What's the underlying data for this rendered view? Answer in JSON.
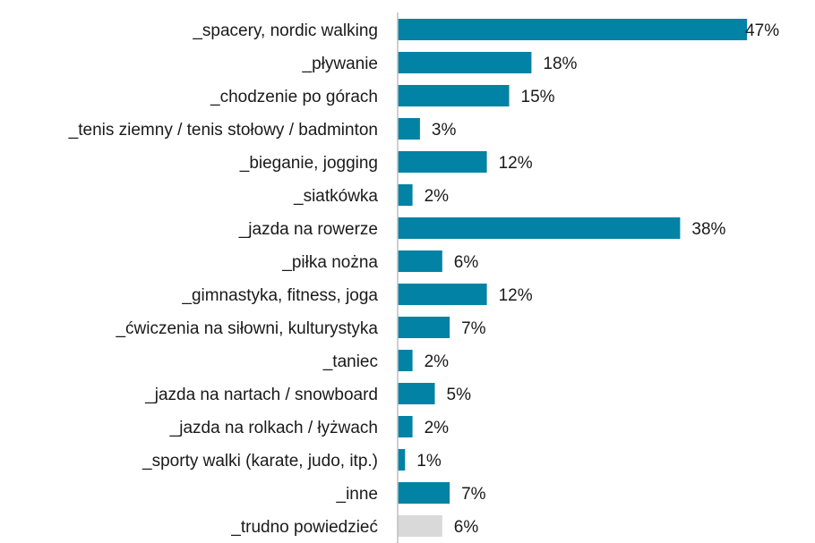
{
  "chart_data": {
    "type": "bar",
    "orientation": "horizontal",
    "categories": [
      "_spacery, nordic walking",
      "_pływanie",
      "_chodzenie po górach",
      "_tenis ziemny / tenis stołowy / badminton",
      "_bieganie, jogging",
      "_siatkówka",
      "_jazda na rowerze",
      "_piłka nożna",
      "_gimnastyka, fitness, joga",
      "_ćwiczenia na siłowni, kulturystyka",
      "_taniec",
      "_jazda na nartach / snowboard",
      "_jazda na rolkach / łyżwach",
      "_sporty walki (karate, judo, itp.)",
      "_inne",
      "_trudno powiedzieć"
    ],
    "values": [
      47,
      18,
      15,
      3,
      12,
      2,
      38,
      6,
      12,
      7,
      2,
      5,
      2,
      1,
      7,
      6
    ],
    "value_labels": [
      "47%",
      "18%",
      "15%",
      "3%",
      "12%",
      "2%",
      "38%",
      "6%",
      "12%",
      "7%",
      "2%",
      "5%",
      "2%",
      "1%",
      "7%",
      "6%"
    ],
    "xlim": [
      0,
      50
    ],
    "title": "",
    "xlabel": "",
    "ylabel": "",
    "grid": false,
    "colors": {
      "bar": "#0282a5",
      "bar_last": "#d9d9d9",
      "axis": "#bfbfbf",
      "text": "#1a1a1a"
    }
  }
}
